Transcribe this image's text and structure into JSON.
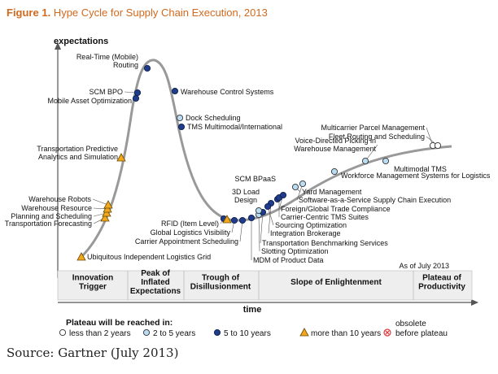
{
  "figure": {
    "number": "Figure 1.",
    "title": "Hype Cycle for Supply Chain Execution, 2013"
  },
  "source": "Source: Gartner (July 2013)",
  "chart_data": {
    "type": "hype-cycle",
    "ylabel": "expectations",
    "xlabel": "time",
    "as_of": "As of July 2013",
    "phases": [
      {
        "lines": [
          "Innovation",
          "Trigger"
        ]
      },
      {
        "lines": [
          "Peak of",
          "Inflated",
          "Expectations"
        ]
      },
      {
        "lines": [
          "Trough of",
          "Disillusionment"
        ]
      },
      {
        "lines": [
          "Slope of Enlightenment"
        ]
      },
      {
        "lines": [
          "Plateau of",
          "Productivity"
        ]
      }
    ],
    "legend": {
      "title": "Plateau will be reached in:",
      "items": [
        {
          "label": "less than 2 years",
          "marker": "circle",
          "color": "#ffffff"
        },
        {
          "label": "2 to 5 years",
          "marker": "circle",
          "color": "#b9dcf2"
        },
        {
          "label": "5 to 10 years",
          "marker": "circle",
          "color": "#1f3d8a"
        },
        {
          "label": "more than 10 years",
          "marker": "triangle",
          "color": "#f2a81d"
        },
        {
          "label": "obsolete before plateau",
          "lines": [
            "obsolete",
            "before plateau"
          ],
          "marker": "cross",
          "color": "#e03a3a"
        }
      ]
    },
    "technologies": [
      {
        "name": "Ubiquitous Independent Logistics Grid",
        "marker": "triangle"
      },
      {
        "name": "Transportation Forecasting",
        "marker": "triangle"
      },
      {
        "name": "Planning and Scheduling",
        "marker": "triangle"
      },
      {
        "name": "Warehouse Resource",
        "marker": "triangle"
      },
      {
        "name": "Warehouse Robots",
        "marker": "triangle"
      },
      {
        "name": "Transportation Predictive Analytics and Simulation",
        "lines": [
          "Transportation Predictive",
          "Analytics and Simulation"
        ],
        "marker": "triangle"
      },
      {
        "name": "Mobile Asset Optimization",
        "marker": "dark"
      },
      {
        "name": "SCM BPO",
        "marker": "dark"
      },
      {
        "name": "Real-Time (Mobile) Routing",
        "lines": [
          "Real-Time (Mobile)",
          "Routing"
        ],
        "marker": "dark"
      },
      {
        "name": "Warehouse Control Systems",
        "marker": "dark"
      },
      {
        "name": "Dock Scheduling",
        "marker": "light"
      },
      {
        "name": "TMS Multimodal/International",
        "marker": "dark"
      },
      {
        "name": "RFID (Item Level)",
        "marker": "dark"
      },
      {
        "name": "Global Logistics Visibility",
        "marker": "dark"
      },
      {
        "name": "Carrier Appointment Scheduling",
        "marker": "dark"
      },
      {
        "name": "Ubiquitous Independent Logistics Grid",
        "marker": "triangle"
      },
      {
        "name": "MDM of Product Data",
        "marker": "dark"
      },
      {
        "name": "Slotting Optimization",
        "marker": "light"
      },
      {
        "name": "Transportation Benchmarking Services",
        "marker": "dark"
      },
      {
        "name": "3D Load Design",
        "lines": [
          "3D Load",
          "Design"
        ],
        "marker": "light"
      },
      {
        "name": "Integration Brokerage",
        "marker": "dark"
      },
      {
        "name": "Sourcing Optimization",
        "marker": "dark"
      },
      {
        "name": "SCM BPaaS",
        "marker": "dark"
      },
      {
        "name": "Carrier-Centric TMS Suites",
        "marker": "dark"
      },
      {
        "name": "Foreign/Global Trade Compliance",
        "marker": "dark"
      },
      {
        "name": "Software-as-a-Service Supply Chain Execution",
        "marker": "light"
      },
      {
        "name": "Yard Management",
        "marker": "light"
      },
      {
        "name": "Workforce Management Systems for Logistics",
        "marker": "light"
      },
      {
        "name": "Voice-Directed Picking in Warehouse Management",
        "lines": [
          "Voice-Directed Picking in",
          "Warehouse Management"
        ],
        "marker": "light"
      },
      {
        "name": "Multimodal TMS",
        "marker": "light"
      },
      {
        "name": "Multicarrier Parcel Management",
        "marker": "white"
      },
      {
        "name": "Fleet Routing and Scheduling",
        "marker": "white"
      }
    ]
  }
}
